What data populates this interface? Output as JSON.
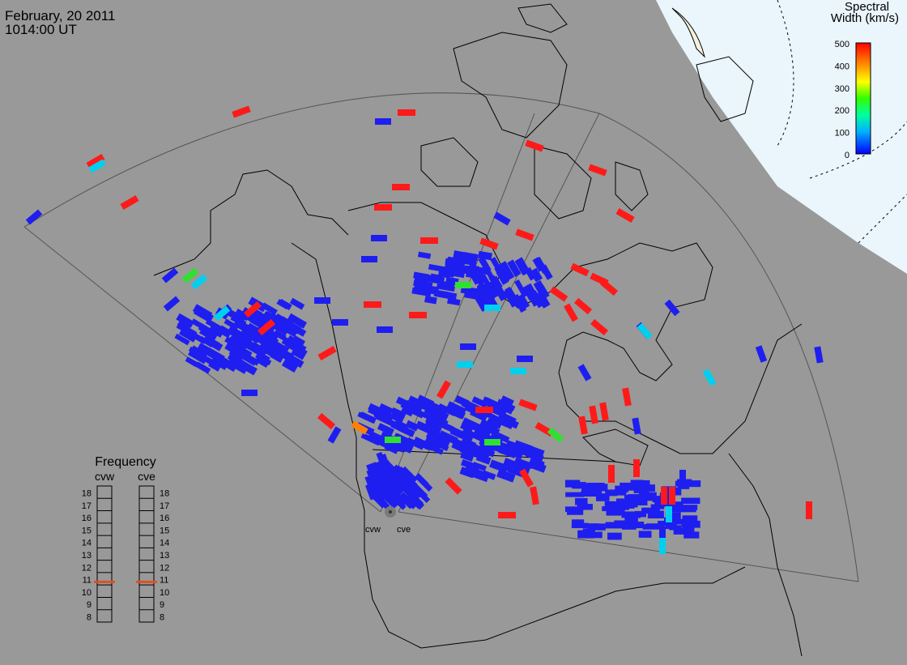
{
  "header": {
    "date": "February, 20 2011",
    "time": "1014:00 UT"
  },
  "colorbar": {
    "title_line1": "Spectral",
    "title_line2": "Width (km/s)",
    "ticks": [
      "500",
      "400",
      "300",
      "200",
      "100",
      "0"
    ],
    "colors": [
      "#0000ff",
      "#00c8ff",
      "#00ff80",
      "#80ff00",
      "#ffff00",
      "#ffa000",
      "#ff0000"
    ]
  },
  "radars": {
    "west_label": "cvw",
    "east_label": "cve"
  },
  "frequency_panel": {
    "title": "Frequency",
    "col1": "cvw",
    "col2": "cve",
    "ticks": [
      "18",
      "17",
      "16",
      "15",
      "14",
      "13",
      "12",
      "11",
      "10",
      "9",
      "8"
    ],
    "cvw_value": 10.75,
    "cve_value": 10.75,
    "marker_color": "#e05020"
  },
  "palette": {
    "background": "#999999",
    "space": "#eaf5fc",
    "land_outline": "#000000",
    "fov_outline": "#555555",
    "low_width": "#1e1ef0",
    "high_width": "#ff1a1a",
    "cyan": "#00d0f0",
    "green": "#30e030",
    "orange": "#ff8000"
  }
}
